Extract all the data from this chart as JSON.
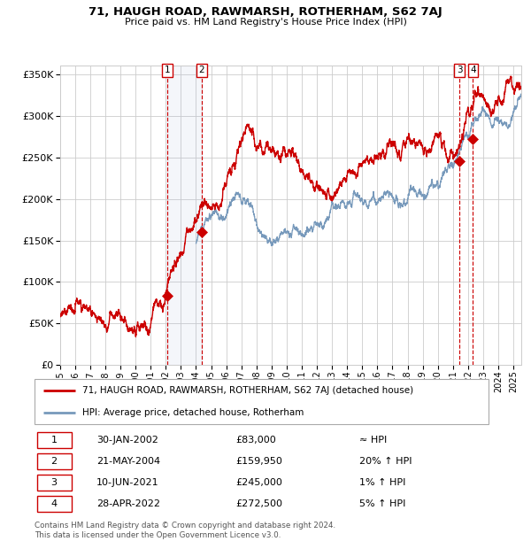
{
  "title": "71, HAUGH ROAD, RAWMARSH, ROTHERHAM, S62 7AJ",
  "subtitle": "Price paid vs. HM Land Registry's House Price Index (HPI)",
  "legend_line1": "71, HAUGH ROAD, RAWMARSH, ROTHERHAM, S62 7AJ (detached house)",
  "legend_line2": "HPI: Average price, detached house, Rotherham",
  "footer1": "Contains HM Land Registry data © Crown copyright and database right 2024.",
  "footer2": "This data is licensed under the Open Government Licence v3.0.",
  "sale_color": "#cc0000",
  "hpi_color": "#7799bb",
  "background_color": "#ffffff",
  "grid_color": "#cccccc",
  "transactions": [
    {
      "num": 1,
      "date": "30-JAN-2002",
      "price": 83000,
      "rel": "≈ HPI",
      "x": 2002.08
    },
    {
      "num": 2,
      "date": "21-MAY-2004",
      "price": 159950,
      "rel": "20% ↑ HPI",
      "x": 2004.38
    },
    {
      "num": 3,
      "date": "10-JUN-2021",
      "price": 245000,
      "rel": "1% ↑ HPI",
      "x": 2021.44
    },
    {
      "num": 4,
      "date": "28-APR-2022",
      "price": 272500,
      "rel": "5% ↑ HPI",
      "x": 2022.33
    }
  ],
  "ylim": [
    0,
    360000
  ],
  "yticks": [
    0,
    50000,
    100000,
    150000,
    200000,
    250000,
    300000,
    350000
  ],
  "xlim": [
    1995.0,
    2025.5
  ],
  "xticks": [
    1995,
    1996,
    1997,
    1998,
    1999,
    2000,
    2001,
    2002,
    2003,
    2004,
    2005,
    2006,
    2007,
    2008,
    2009,
    2010,
    2011,
    2012,
    2013,
    2014,
    2015,
    2016,
    2017,
    2018,
    2019,
    2020,
    2021,
    2022,
    2023,
    2024,
    2025
  ]
}
